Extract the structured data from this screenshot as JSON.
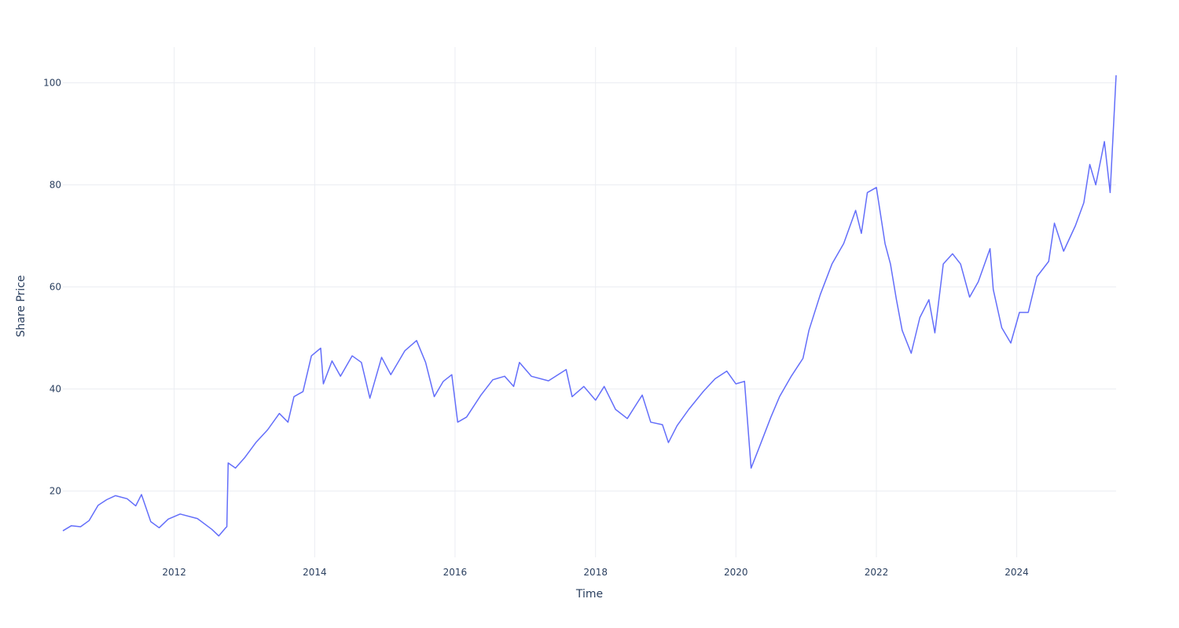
{
  "chart_data": {
    "type": "line",
    "title": "",
    "xlabel": "Time",
    "ylabel": "Share Price",
    "xlim": [
      "2010-06-01",
      "2025-06-01"
    ],
    "ylim": [
      7,
      107
    ],
    "x_ticks": [
      "2012",
      "2014",
      "2016",
      "2018",
      "2020",
      "2022",
      "2024"
    ],
    "y_ticks": [
      20,
      40,
      60,
      80,
      100
    ],
    "grid": true,
    "colors": {
      "line": "#636efa",
      "grid": "#ebedf2",
      "text": "#2a3f5f"
    },
    "series": [
      {
        "points": [
          [
            "2010-06-01",
            12.2
          ],
          [
            "2010-07-15",
            13.2
          ],
          [
            "2010-09-01",
            13.0
          ],
          [
            "2010-10-15",
            14.2
          ],
          [
            "2010-12-01",
            17.2
          ],
          [
            "2011-01-15",
            18.3
          ],
          [
            "2011-03-01",
            19.1
          ],
          [
            "2011-05-01",
            18.5
          ],
          [
            "2011-06-15",
            17.1
          ],
          [
            "2011-07-15",
            19.3
          ],
          [
            "2011-09-01",
            14.0
          ],
          [
            "2011-10-15",
            12.8
          ],
          [
            "2011-12-01",
            14.5
          ],
          [
            "2012-02-01",
            15.5
          ],
          [
            "2012-05-01",
            14.6
          ],
          [
            "2012-07-15",
            12.5
          ],
          [
            "2012-08-20",
            11.2
          ],
          [
            "2012-09-25",
            12.8
          ],
          [
            "2012-10-01",
            13.0
          ],
          [
            "2012-10-08",
            25.5
          ],
          [
            "2012-11-15",
            24.5
          ],
          [
            "2013-01-01",
            26.5
          ],
          [
            "2013-03-01",
            29.5
          ],
          [
            "2013-05-01",
            32.0
          ],
          [
            "2013-07-01",
            35.2
          ],
          [
            "2013-08-15",
            33.5
          ],
          [
            "2013-09-15",
            38.5
          ],
          [
            "2013-11-01",
            39.5
          ],
          [
            "2013-12-15",
            46.5
          ],
          [
            "2014-02-01",
            48.0
          ],
          [
            "2014-02-15",
            41.0
          ],
          [
            "2014-04-01",
            45.5
          ],
          [
            "2014-05-15",
            42.5
          ],
          [
            "2014-07-15",
            46.5
          ],
          [
            "2014-09-01",
            45.2
          ],
          [
            "2014-10-15",
            38.2
          ],
          [
            "2014-12-15",
            46.2
          ],
          [
            "2015-02-01",
            42.8
          ],
          [
            "2015-04-15",
            47.5
          ],
          [
            "2015-06-15",
            49.5
          ],
          [
            "2015-08-01",
            45.2
          ],
          [
            "2015-09-15",
            38.5
          ],
          [
            "2015-11-01",
            41.5
          ],
          [
            "2015-12-15",
            42.8
          ],
          [
            "2016-01-15",
            33.5
          ],
          [
            "2016-03-01",
            34.5
          ],
          [
            "2016-05-15",
            38.8
          ],
          [
            "2016-07-15",
            41.8
          ],
          [
            "2016-09-15",
            42.5
          ],
          [
            "2016-11-01",
            40.5
          ],
          [
            "2016-12-01",
            45.2
          ],
          [
            "2017-02-01",
            42.5
          ],
          [
            "2017-05-01",
            41.6
          ],
          [
            "2017-08-01",
            43.8
          ],
          [
            "2017-09-01",
            38.5
          ],
          [
            "2017-11-01",
            40.5
          ],
          [
            "2018-01-01",
            37.8
          ],
          [
            "2018-02-15",
            40.5
          ],
          [
            "2018-04-15",
            36.0
          ],
          [
            "2018-06-15",
            34.2
          ],
          [
            "2018-08-01",
            37.0
          ],
          [
            "2018-09-01",
            38.8
          ],
          [
            "2018-10-15",
            33.5
          ],
          [
            "2018-12-15",
            33.0
          ],
          [
            "2019-01-15",
            29.5
          ],
          [
            "2019-03-01",
            32.8
          ],
          [
            "2019-05-01",
            36.0
          ],
          [
            "2019-07-15",
            39.5
          ],
          [
            "2019-09-15",
            42.0
          ],
          [
            "2019-11-15",
            43.5
          ],
          [
            "2020-01-01",
            41.0
          ],
          [
            "2020-02-15",
            41.5
          ],
          [
            "2020-03-20",
            24.5
          ],
          [
            "2020-05-01",
            28.5
          ],
          [
            "2020-07-01",
            34.5
          ],
          [
            "2020-08-15",
            38.5
          ],
          [
            "2020-10-15",
            42.5
          ],
          [
            "2020-12-15",
            46.0
          ],
          [
            "2021-01-15",
            51.5
          ],
          [
            "2021-03-15",
            58.5
          ],
          [
            "2021-05-15",
            64.5
          ],
          [
            "2021-07-15",
            68.5
          ],
          [
            "2021-09-15",
            75.0
          ],
          [
            "2021-10-15",
            70.5
          ],
          [
            "2021-11-15",
            78.5
          ],
          [
            "2022-01-01",
            79.5
          ],
          [
            "2022-02-15",
            68.5
          ],
          [
            "2022-03-15",
            64.5
          ],
          [
            "2022-04-15",
            57.5
          ],
          [
            "2022-05-15",
            51.5
          ],
          [
            "2022-07-01",
            47.0
          ],
          [
            "2022-08-15",
            54.0
          ],
          [
            "2022-10-01",
            57.5
          ],
          [
            "2022-11-01",
            51.0
          ],
          [
            "2022-12-15",
            64.5
          ],
          [
            "2023-02-01",
            66.5
          ],
          [
            "2023-03-15",
            64.5
          ],
          [
            "2023-05-01",
            58.0
          ],
          [
            "2023-06-15",
            61.0
          ],
          [
            "2023-08-15",
            67.5
          ],
          [
            "2023-09-01",
            59.5
          ],
          [
            "2023-10-15",
            52.0
          ],
          [
            "2023-12-01",
            49.0
          ],
          [
            "2024-01-15",
            55.0
          ],
          [
            "2024-03-01",
            55.0
          ],
          [
            "2024-04-15",
            62.0
          ],
          [
            "2024-06-15",
            65.0
          ],
          [
            "2024-07-15",
            72.5
          ],
          [
            "2024-09-01",
            67.0
          ],
          [
            "2024-11-01",
            72.0
          ],
          [
            "2024-12-15",
            76.5
          ],
          [
            "2025-01-15",
            84.0
          ],
          [
            "2025-02-15",
            80.0
          ],
          [
            "2025-04-01",
            88.5
          ],
          [
            "2025-05-01",
            78.5
          ],
          [
            "2025-06-01",
            101.5
          ]
        ]
      }
    ]
  }
}
